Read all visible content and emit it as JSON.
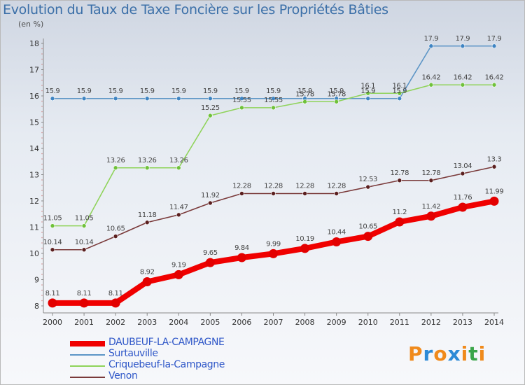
{
  "title": "Evolution du Taux de Taxe Foncière sur les Propriétés Bâties",
  "subtitle": "(en %)",
  "logo": {
    "text": "Proxiti",
    "letters": [
      "P",
      "r",
      "o",
      "x",
      "i",
      "t",
      "i"
    ],
    "colors": [
      "#f08a1c",
      "#2d8ad6",
      "#f08a1c",
      "#2d8ad6",
      "#f08a1c",
      "#3aa54a",
      "#f08a1c"
    ]
  },
  "chart_data": {
    "type": "line",
    "x": [
      "2000",
      "2001",
      "2002",
      "2003",
      "2004",
      "2005",
      "2006",
      "2007",
      "2008",
      "2009",
      "2010",
      "2011",
      "2012",
      "2013",
      "2014"
    ],
    "ylim": [
      8,
      18
    ],
    "yticks": [
      "8",
      "9",
      "10",
      "11",
      "12",
      "13",
      "14",
      "15",
      "16",
      "17",
      "18"
    ],
    "grid": false,
    "legend_position": "bottom-left",
    "series": [
      {
        "name": "DAUBEUF-LA-CAMPAGNE",
        "color": "#f00000",
        "marker_color": "#e30000",
        "values": [
          8.11,
          8.11,
          8.11,
          8.92,
          9.19,
          9.65,
          9.84,
          9.99,
          10.19,
          10.44,
          10.65,
          11.2,
          11.42,
          11.76,
          11.99
        ],
        "labels": [
          "8.11",
          "8.11",
          "8.11",
          "8.92",
          "9.19",
          "9.65",
          "9.84",
          "9.99",
          "10.19",
          "10.44",
          "10.65",
          "11.2",
          "11.42",
          "11.76",
          "11.99"
        ]
      },
      {
        "name": "Surtauville",
        "color": "#5c95c6",
        "marker_color": "#3f84c2",
        "values": [
          15.9,
          15.9,
          15.9,
          15.9,
          15.9,
          15.9,
          15.9,
          15.9,
          15.9,
          15.9,
          15.9,
          15.9,
          17.9,
          17.9,
          17.9
        ],
        "labels": [
          "15.9",
          "15.9",
          "15.9",
          "15.9",
          "15.9",
          "15.9",
          "15.9",
          "15.9",
          "15.9",
          "15.9",
          "15.9",
          "15.9",
          "17.9",
          "17.9",
          "17.9"
        ]
      },
      {
        "name": "Criquebeuf-la-Campagne",
        "color": "#8fd35a",
        "marker_color": "#6fc13b",
        "values": [
          11.05,
          11.05,
          13.26,
          13.26,
          13.26,
          15.25,
          15.55,
          15.55,
          15.78,
          15.78,
          16.1,
          16.1,
          16.42,
          16.42,
          16.42
        ],
        "labels": [
          "11.05",
          "11.05",
          "13.26",
          "13.26",
          "13.26",
          "15.25",
          "15.55",
          "15.55",
          "15.78",
          "15.78",
          "16.1",
          "16.1",
          "16.42",
          "16.42",
          "16.42"
        ]
      },
      {
        "name": "Venon",
        "color": "#7a3a3a",
        "marker_color": "#5a1f1f",
        "values": [
          10.14,
          10.14,
          10.65,
          11.18,
          11.47,
          11.92,
          12.28,
          12.28,
          12.28,
          12.28,
          12.53,
          12.78,
          12.78,
          13.04,
          13.3
        ],
        "labels": [
          "10.14",
          "10.14",
          "10.65",
          "11.18",
          "11.47",
          "11.92",
          "12.28",
          "12.28",
          "12.28",
          "12.28",
          "12.53",
          "12.78",
          "12.78",
          "13.04",
          "13.3"
        ]
      }
    ]
  }
}
